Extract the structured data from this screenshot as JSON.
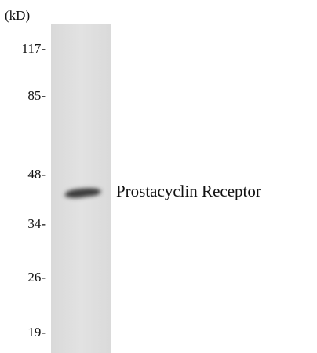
{
  "unit": "(kD)",
  "markers": [
    "117-",
    "85-",
    "48-",
    "34-",
    "26-",
    "19-"
  ],
  "band_label": "Prostacyclin Receptor"
}
